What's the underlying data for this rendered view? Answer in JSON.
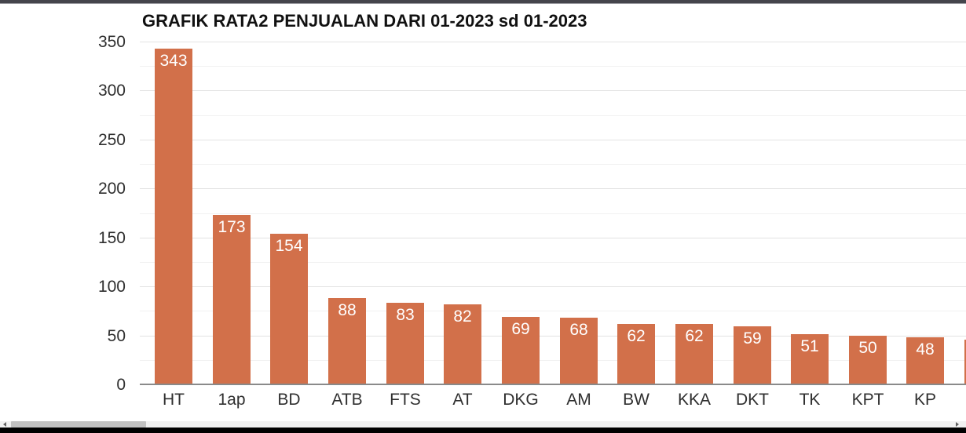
{
  "chart_data": {
    "type": "bar",
    "title": "GRAFIK RATA2 PENJUALAN DARI 01-2023 sd 01-2023",
    "categories": [
      "HT",
      "1ap",
      "BD",
      "ATB",
      "FTS",
      "AT",
      "DKG",
      "AM",
      "BW",
      "KKA",
      "DKT",
      "TK",
      "KPT",
      "KP"
    ],
    "values": [
      343,
      173,
      154,
      88,
      83,
      82,
      69,
      68,
      62,
      62,
      59,
      51,
      50,
      48
    ],
    "value_labels": [
      "343",
      "173",
      "154",
      "88",
      "83",
      "82",
      "69",
      "68",
      "62",
      "62",
      "59",
      "51",
      "50",
      "48"
    ],
    "xlabel": "",
    "ylabel": "",
    "ylim": [
      0,
      350
    ],
    "y_major_ticks": [
      0,
      50,
      100,
      150,
      200,
      250,
      300,
      350
    ],
    "y_minor_step": 25,
    "grid": true,
    "legend": "none",
    "bar_color": "#d2704a",
    "value_label_color": "#ffffff",
    "axis_label_color": "#2f2f2f",
    "gridline_major_color": "#e3e3e3",
    "gridline_minor_color": "#f1f1f1",
    "axis_line_color": "#8a8a8a",
    "partial_next_bar": {
      "visible": true,
      "height_value": 46
    }
  },
  "window": {
    "top_border_color": "#45454c",
    "bottom_border_color": "#000000",
    "scrollbar": {
      "track_color": "#f1f1f1",
      "thumb_color": "#c2c2c2",
      "arrow_color": "#606060"
    }
  }
}
